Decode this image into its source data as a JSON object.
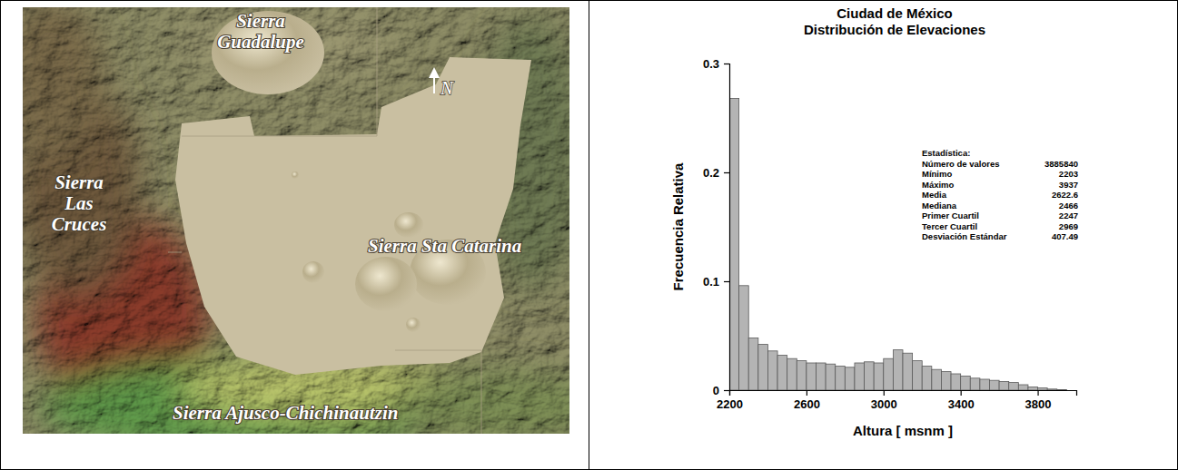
{
  "chart_data": {
    "type": "histogram",
    "title": "Ciudad de México",
    "subtitle": "Distribución de Elevaciones",
    "xlabel": "Altura [ msnm ]",
    "ylabel": "Frecuencia Relativa",
    "bins": [
      2200,
      2250,
      2300,
      2350,
      2400,
      2450,
      2500,
      2550,
      2600,
      2650,
      2700,
      2750,
      2800,
      2850,
      2900,
      2950,
      3000,
      3050,
      3100,
      3150,
      3200,
      3250,
      3300,
      3350,
      3400,
      3450,
      3500,
      3550,
      3600,
      3650,
      3700,
      3750,
      3800,
      3850,
      3900,
      3950
    ],
    "values": [
      0.268,
      0.096,
      0.048,
      0.042,
      0.036,
      0.032,
      0.029,
      0.027,
      0.025,
      0.025,
      0.024,
      0.022,
      0.021,
      0.025,
      0.026,
      0.025,
      0.029,
      0.037,
      0.034,
      0.027,
      0.022,
      0.019,
      0.017,
      0.015,
      0.013,
      0.011,
      0.01,
      0.009,
      0.008,
      0.007,
      0.005,
      0.003,
      0.002,
      0.001,
      0.0005
    ],
    "color": "#b4b4b4",
    "xlim": [
      2200,
      4000
    ],
    "ylim": [
      0,
      0.3
    ],
    "xticks": [
      2200,
      2600,
      3000,
      3400,
      3800
    ],
    "yticks": [
      0,
      0.1,
      0.2,
      0.3
    ],
    "grid": false,
    "stats": {
      "title": "Estadística:",
      "rows": [
        {
          "label": "Número de valores",
          "value": 3885840
        },
        {
          "label": "Mínimo",
          "value": 2203
        },
        {
          "label": "Máximo",
          "value": 3937
        },
        {
          "label": "Media",
          "value": 2622.6
        },
        {
          "label": "Mediana",
          "value": 2466
        },
        {
          "label": "Primer Cuartil",
          "value": 2247
        },
        {
          "label": "Tercer Cuartil",
          "value": 2969
        },
        {
          "label": "Desviación Estándar",
          "value": 407.49
        }
      ]
    }
  },
  "map": {
    "labels": [
      "Sierra Guadalupe",
      "Sierra Las Cruces",
      "Sierra Sta Catarina",
      "Sierra Ajusco-Chichinautzin"
    ],
    "north": "N"
  }
}
